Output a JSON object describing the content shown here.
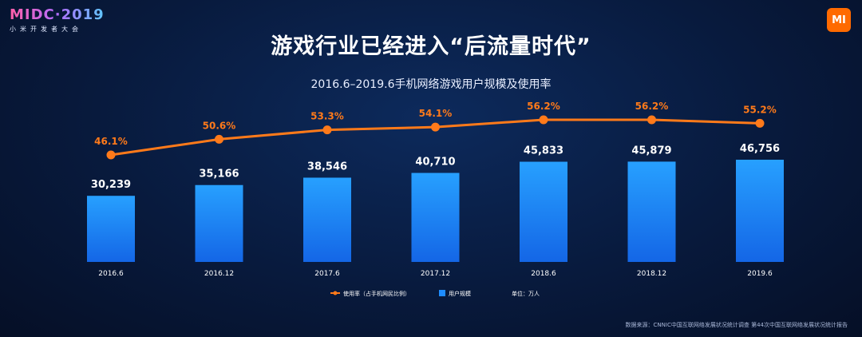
{
  "header": {
    "logo_text": "MIDC·2019",
    "logo_subtitle": "小米开发者大会",
    "brand_mark": "MI"
  },
  "page_title": "游戏行业已经进入“后流量时代”",
  "chart_data": {
    "type": "bar",
    "title": "2016.6–2019.6手机网络游戏用户规模及使用率",
    "categories": [
      "2016.6",
      "2016.12",
      "2017.6",
      "2017.12",
      "2018.6",
      "2018.12",
      "2019.6"
    ],
    "series": [
      {
        "name": "用户规模",
        "type": "bar",
        "values": [
          30239,
          35166,
          38546,
          40710,
          45833,
          45879,
          46756
        ],
        "labels": [
          "30,239",
          "35,166",
          "38,546",
          "40,710",
          "45,833",
          "45,879",
          "46,756"
        ],
        "color": "#1e8cff"
      },
      {
        "name": "使用率（占手机网民比例）",
        "type": "line",
        "values": [
          46.1,
          50.6,
          53.3,
          54.1,
          56.2,
          56.2,
          55.2
        ],
        "labels": [
          "46.1%",
          "50.6%",
          "53.3%",
          "54.1%",
          "56.2%",
          "56.2%",
          "55.2%"
        ],
        "color": "#ff7a1a"
      }
    ],
    "unit_label": "单位：万人",
    "ylim_bar": [
      0,
      60000
    ],
    "ylim_line": [
      20,
      60
    ],
    "legend_position": "bottom-center"
  },
  "legend": {
    "line_label": "使用率（占手机网民比例）",
    "bar_label": "用户规模",
    "unit_label": "单位：万人"
  },
  "source_text": "数据来源：CNNIC中国互联网络发展状况统计调查 第44次中国互联网络发展状况统计报告",
  "colors": {
    "bar": "#1e8cff",
    "line": "#ff7a1a",
    "background": "#081a3d"
  }
}
